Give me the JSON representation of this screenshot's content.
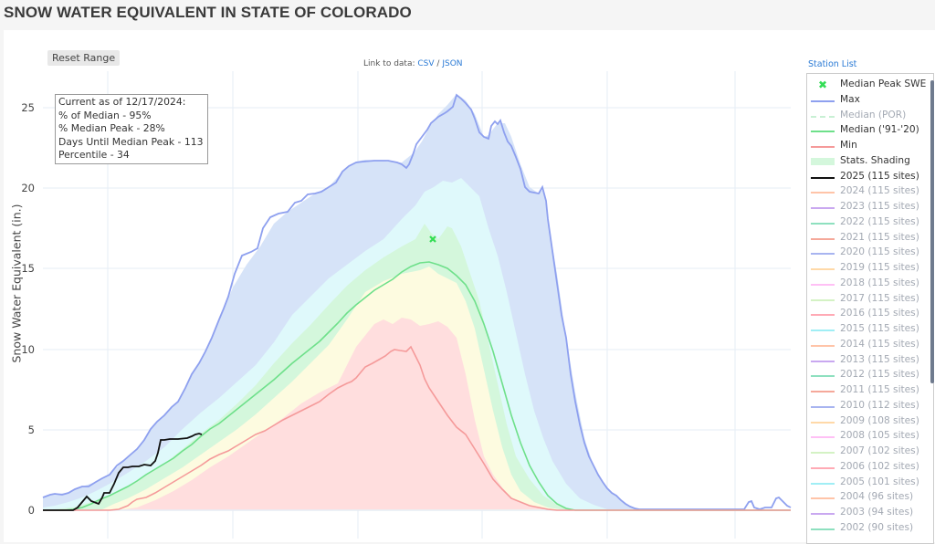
{
  "title": "SNOW WATER EQUIVALENT IN STATE OF COLORADO",
  "toolbar": {
    "reset_range_label": "Reset Range",
    "data_link_prefix": "Link to data:",
    "csv_label": "CSV",
    "separator": "/",
    "json_label": "JSON",
    "station_list_label": "Station List"
  },
  "infobox": {
    "line1": "Current as of 12/17/2024:",
    "line2": "% of Median - 95%",
    "line3": "% Median Peak - 28%",
    "line4": "Days Until Median Peak - 113",
    "line5": "Percentile - 34"
  },
  "legend": {
    "items": [
      {
        "label": "Median Peak SWE",
        "color": "#33dd55",
        "style": "marker-x",
        "active": true
      },
      {
        "label": "Max",
        "color": "#8ea0ef",
        "style": "line",
        "active": true
      },
      {
        "label": "Median (POR)",
        "color": "#c8f0d4",
        "style": "dash",
        "active": false
      },
      {
        "label": "Median ('91-'20)",
        "color": "#6ee08a",
        "style": "line",
        "active": true
      },
      {
        "label": "Min",
        "color": "#f59a9a",
        "style": "line",
        "active": true
      },
      {
        "label": "Stats. Shading",
        "color": "#d4f7dc",
        "style": "fill",
        "active": true
      },
      {
        "label": "2025 (115 sites)",
        "color": "#111111",
        "style": "line",
        "active": true
      },
      {
        "label": "2024 (115 sites)",
        "color": "#ffc4a8",
        "style": "line",
        "active": false
      },
      {
        "label": "2023 (115 sites)",
        "color": "#c9a8f0",
        "style": "line",
        "active": false
      },
      {
        "label": "2022 (115 sites)",
        "color": "#8ee0bf",
        "style": "line",
        "active": false
      },
      {
        "label": "2021 (115 sites)",
        "color": "#f5a89a",
        "style": "line",
        "active": false
      },
      {
        "label": "2020 (115 sites)",
        "color": "#a8b4f0",
        "style": "line",
        "active": false
      },
      {
        "label": "2019 (115 sites)",
        "color": "#ffd9a8",
        "style": "line",
        "active": false
      },
      {
        "label": "2018 (115 sites)",
        "color": "#ffc0f5",
        "style": "line",
        "active": false
      },
      {
        "label": "2017 (115 sites)",
        "color": "#d4f2c4",
        "style": "line",
        "active": false
      },
      {
        "label": "2016 (115 sites)",
        "color": "#ffaab5",
        "style": "line",
        "active": false
      },
      {
        "label": "2015 (115 sites)",
        "color": "#a0eef5",
        "style": "line",
        "active": false
      },
      {
        "label": "2014 (115 sites)",
        "color": "#ffc4a8",
        "style": "line",
        "active": false
      },
      {
        "label": "2013 (115 sites)",
        "color": "#c9a8f0",
        "style": "line",
        "active": false
      },
      {
        "label": "2012 (115 sites)",
        "color": "#8ee0bf",
        "style": "line",
        "active": false
      },
      {
        "label": "2011 (115 sites)",
        "color": "#f5a89a",
        "style": "line",
        "active": false
      },
      {
        "label": "2010 (112 sites)",
        "color": "#a8b4f0",
        "style": "line",
        "active": false
      },
      {
        "label": "2009 (108 sites)",
        "color": "#ffd9a8",
        "style": "line",
        "active": false
      },
      {
        "label": "2008 (105 sites)",
        "color": "#ffc0f5",
        "style": "line",
        "active": false
      },
      {
        "label": "2007 (102 sites)",
        "color": "#d4f2c4",
        "style": "line",
        "active": false
      },
      {
        "label": "2006 (102 sites)",
        "color": "#ffaab5",
        "style": "line",
        "active": false
      },
      {
        "label": "2005 (101 sites)",
        "color": "#a0eef5",
        "style": "line",
        "active": false
      },
      {
        "label": "2004 (96 sites)",
        "color": "#ffc4a8",
        "style": "line",
        "active": false
      },
      {
        "label": "2003 (94 sites)",
        "color": "#c9a8f0",
        "style": "line",
        "active": false
      },
      {
        "label": "2002 (90 sites)",
        "color": "#8ee0bf",
        "style": "line",
        "active": false
      }
    ]
  },
  "axes": {
    "ylabel": "Snow Water Equivalent (in.)",
    "yticks": [
      "0",
      "5",
      "10",
      "15",
      "20",
      "25"
    ]
  },
  "chart_data": {
    "type": "area",
    "title": "SNOW WATER EQUIVALENT IN STATE OF COLORADO",
    "xlabel": "",
    "ylabel": "Snow Water Equivalent (in.)",
    "ylim": [
      0,
      26.5
    ],
    "grid": true,
    "legend_position": "right",
    "x_index_note": "x = day index from start of water year (Oct 1), approx 0-365",
    "x": [
      0,
      20,
      40,
      60,
      80,
      100,
      120,
      140,
      160,
      180,
      200,
      220,
      240,
      260,
      280,
      300,
      320,
      340,
      365
    ],
    "series": [
      {
        "name": "Max",
        "values": [
          0.8,
          1.5,
          3.8,
          7.0,
          11.0,
          15.8,
          18.2,
          20.0,
          21.7,
          21.9,
          25.8,
          24.2,
          19.0,
          10.0,
          0.8,
          0.0,
          0.0,
          0.1,
          0.2
        ]
      },
      {
        "name": "Median ('91-'20)",
        "values": [
          0.0,
          0.1,
          1.2,
          3.3,
          5.7,
          8.3,
          10.9,
          13.0,
          14.3,
          15.4,
          14.8,
          11.0,
          4.5,
          0.8,
          0.0,
          0.0,
          0.0,
          0.0,
          0.0
        ]
      },
      {
        "name": "Min",
        "values": [
          0.0,
          0.0,
          0.0,
          0.6,
          2.0,
          3.8,
          5.6,
          7.2,
          9.0,
          10.0,
          6.5,
          3.0,
          0.3,
          0.0,
          0.0,
          0.0,
          0.0,
          0.0,
          0.0
        ]
      },
      {
        "name": "2025 (115 sites)",
        "x": [
          0,
          10,
          15,
          20,
          25,
          30,
          35,
          40,
          45,
          50,
          55,
          60,
          65,
          70,
          75,
          78
        ],
        "values": [
          0.0,
          0.0,
          0.0,
          0.8,
          0.5,
          1.0,
          1.5,
          2.6,
          2.7,
          2.8,
          3.1,
          4.4,
          4.4,
          4.5,
          4.6,
          4.7
        ]
      },
      {
        "name": "Median Peak SWE",
        "x": [
          152
        ],
        "values": [
          16.9
        ]
      }
    ],
    "annotations": [
      "Current as of 12/17/2024:",
      "% of Median - 95%",
      "% Median Peak - 28%",
      "Days Until Median Peak - 113",
      "Percentile - 34"
    ]
  }
}
